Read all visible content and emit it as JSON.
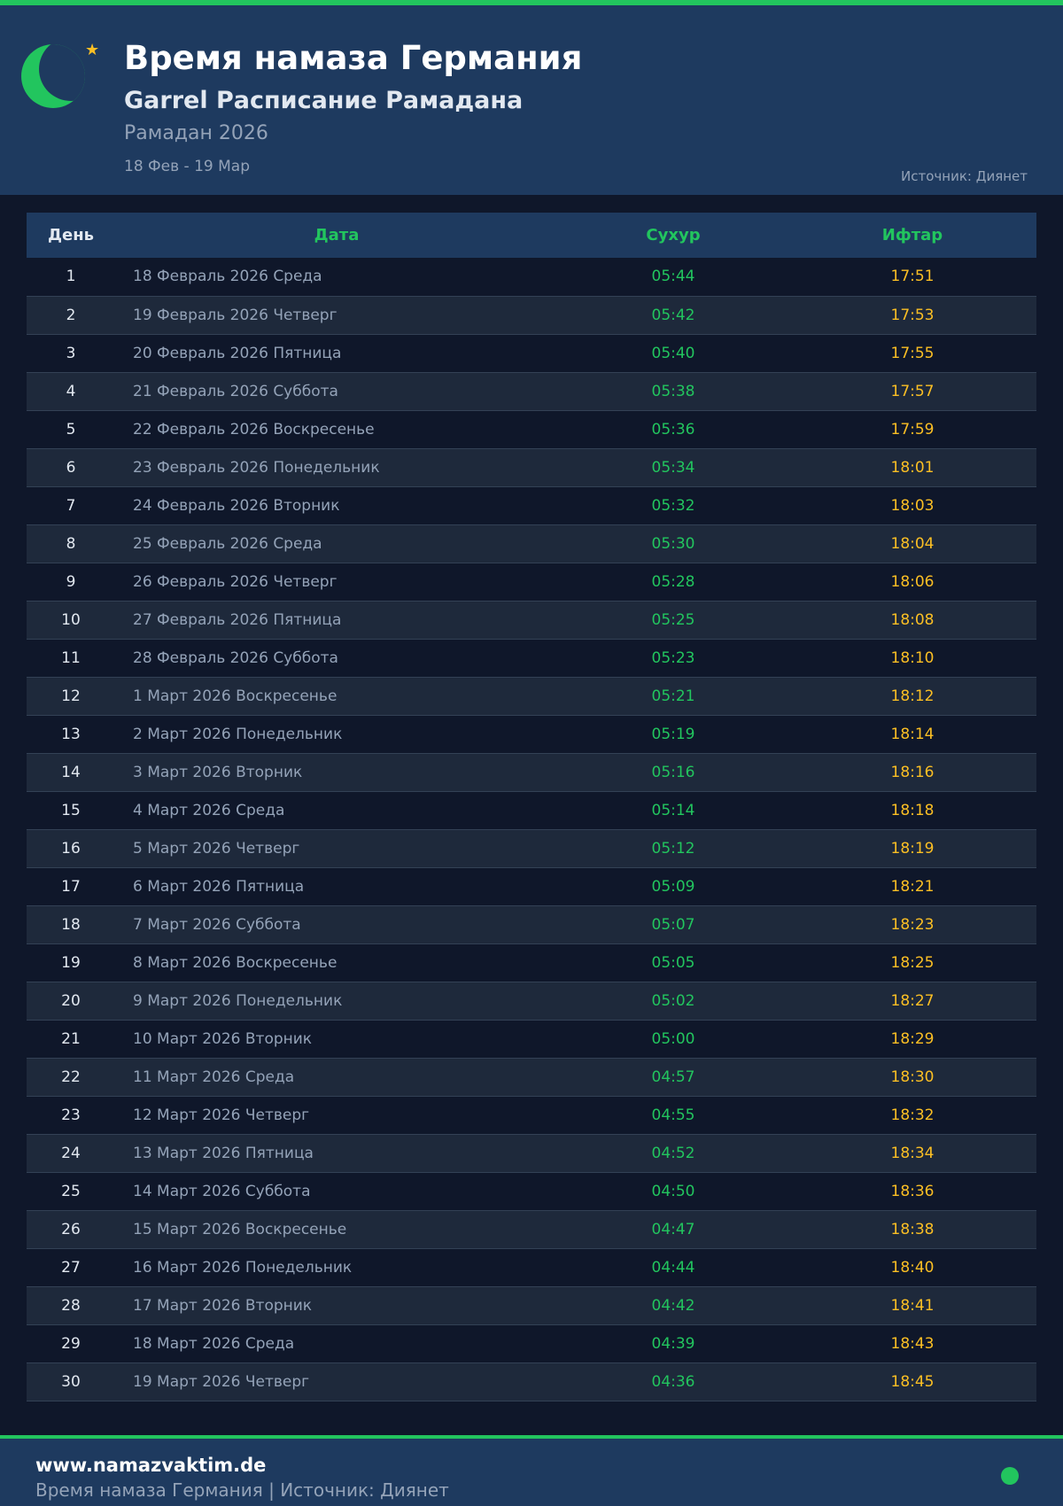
{
  "header": {
    "title": "Время намаза Германия",
    "subtitle": "Garrel Расписание Рамадана",
    "year": "Рамадан 2026",
    "range": "18 Фев - 19 Мар",
    "source": "Источник: Диянет"
  },
  "table": {
    "columns": [
      "День",
      "Дата",
      "Сухур",
      "Ифтар"
    ],
    "rows": [
      [
        "1",
        "18 Февраль 2026 Среда",
        "05:44",
        "17:51"
      ],
      [
        "2",
        "19 Февраль 2026 Четверг",
        "05:42",
        "17:53"
      ],
      [
        "3",
        "20 Февраль 2026 Пятница",
        "05:40",
        "17:55"
      ],
      [
        "4",
        "21 Февраль 2026 Суббота",
        "05:38",
        "17:57"
      ],
      [
        "5",
        "22 Февраль 2026 Воскресенье",
        "05:36",
        "17:59"
      ],
      [
        "6",
        "23 Февраль 2026 Понедельник",
        "05:34",
        "18:01"
      ],
      [
        "7",
        "24 Февраль 2026 Вторник",
        "05:32",
        "18:03"
      ],
      [
        "8",
        "25 Февраль 2026 Среда",
        "05:30",
        "18:04"
      ],
      [
        "9",
        "26 Февраль 2026 Четверг",
        "05:28",
        "18:06"
      ],
      [
        "10",
        "27 Февраль 2026 Пятница",
        "05:25",
        "18:08"
      ],
      [
        "11",
        "28 Февраль 2026 Суббота",
        "05:23",
        "18:10"
      ],
      [
        "12",
        "1 Март 2026 Воскресенье",
        "05:21",
        "18:12"
      ],
      [
        "13",
        "2 Март 2026 Понедельник",
        "05:19",
        "18:14"
      ],
      [
        "14",
        "3 Март 2026 Вторник",
        "05:16",
        "18:16"
      ],
      [
        "15",
        "4 Март 2026 Среда",
        "05:14",
        "18:18"
      ],
      [
        "16",
        "5 Март 2026 Четверг",
        "05:12",
        "18:19"
      ],
      [
        "17",
        "6 Март 2026 Пятница",
        "05:09",
        "18:21"
      ],
      [
        "18",
        "7 Март 2026 Суббота",
        "05:07",
        "18:23"
      ],
      [
        "19",
        "8 Март 2026 Воскресенье",
        "05:05",
        "18:25"
      ],
      [
        "20",
        "9 Март 2026 Понедельник",
        "05:02",
        "18:27"
      ],
      [
        "21",
        "10 Март 2026 Вторник",
        "05:00",
        "18:29"
      ],
      [
        "22",
        "11 Март 2026 Среда",
        "04:57",
        "18:30"
      ],
      [
        "23",
        "12 Март 2026 Четверг",
        "04:55",
        "18:32"
      ],
      [
        "24",
        "13 Март 2026 Пятница",
        "04:52",
        "18:34"
      ],
      [
        "25",
        "14 Март 2026 Суббота",
        "04:50",
        "18:36"
      ],
      [
        "26",
        "15 Март 2026 Воскресенье",
        "04:47",
        "18:38"
      ],
      [
        "27",
        "16 Март 2026 Понедельник",
        "04:44",
        "18:40"
      ],
      [
        "28",
        "17 Март 2026 Вторник",
        "04:42",
        "18:41"
      ],
      [
        "29",
        "18 Март 2026 Среда",
        "04:39",
        "18:43"
      ],
      [
        "30",
        "19 Март 2026 Четверг",
        "04:36",
        "18:45"
      ]
    ]
  },
  "footer": {
    "site": "www.namazvaktim.de",
    "text": "Время намаза Германия | Источник: Диянет"
  },
  "colors": {
    "accent": "#22c55e",
    "iftar": "#fbbf24",
    "header_bg": "#1e3a5f",
    "page_bg": "#0f172a"
  },
  "icons": {
    "logo": "crescent-moon-icon",
    "star": "star-icon",
    "status": "status-dot-icon"
  }
}
